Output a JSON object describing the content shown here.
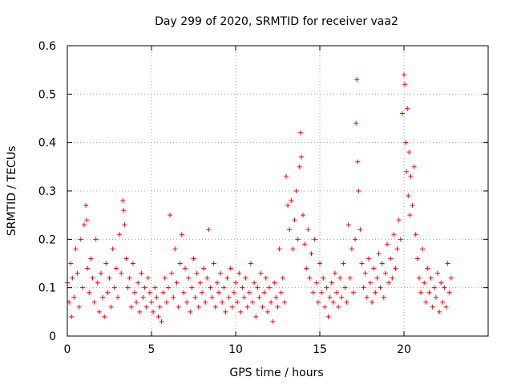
{
  "chart_data": {
    "type": "scatter",
    "title": "Day 299 of 2020, SRMTID for receiver vaa2",
    "xlabel": "GPS time / hours",
    "ylabel": "SRMTID / TECUs",
    "xlim": [
      0,
      25
    ],
    "ylim": [
      0,
      0.6
    ],
    "x_ticks": [
      0,
      5,
      10,
      15,
      20
    ],
    "y_ticks": [
      0,
      0.1,
      0.2,
      0.3,
      0.4,
      0.5,
      0.6
    ],
    "x_tick_labels": [
      "0",
      "5",
      "10",
      "15",
      "20"
    ],
    "y_tick_labels": [
      "0",
      "0.1",
      "0.2",
      "0.3",
      "0.4",
      "0.5",
      "0.6"
    ],
    "grid": true,
    "marker": "+",
    "color": "#ff0000",
    "series": [
      {
        "name": "SRMTID",
        "x": [
          0.0,
          0.1,
          0.2,
          0.25,
          0.3,
          0.4,
          0.5,
          0.6,
          0.7,
          0.8,
          0.9,
          1.0,
          1.1,
          1.15,
          1.2,
          1.3,
          1.4,
          1.5,
          1.6,
          1.7,
          1.8,
          1.9,
          2.0,
          2.1,
          2.2,
          2.3,
          2.4,
          2.5,
          2.6,
          2.7,
          2.8,
          2.9,
          3.0,
          3.1,
          3.2,
          3.3,
          3.35,
          3.4,
          3.5,
          3.6,
          3.7,
          3.8,
          3.9,
          4.0,
          4.1,
          4.2,
          4.3,
          4.4,
          4.5,
          4.6,
          4.7,
          4.8,
          4.9,
          5.0,
          5.1,
          5.2,
          5.3,
          5.4,
          5.5,
          5.6,
          5.7,
          5.8,
          5.9,
          6.0,
          6.1,
          6.2,
          6.3,
          6.4,
          6.5,
          6.6,
          6.7,
          6.8,
          6.9,
          7.0,
          7.1,
          7.2,
          7.3,
          7.4,
          7.5,
          7.6,
          7.7,
          7.8,
          7.9,
          8.0,
          8.1,
          8.2,
          8.3,
          8.4,
          8.5,
          8.6,
          8.7,
          8.8,
          8.9,
          9.0,
          9.1,
          9.2,
          9.3,
          9.4,
          9.5,
          9.6,
          9.7,
          9.8,
          9.9,
          10.0,
          10.1,
          10.2,
          10.3,
          10.4,
          10.5,
          10.6,
          10.7,
          10.8,
          10.9,
          11.0,
          11.1,
          11.2,
          11.3,
          11.4,
          11.5,
          11.6,
          11.7,
          11.8,
          11.9,
          12.0,
          12.1,
          12.2,
          12.3,
          12.4,
          12.5,
          12.6,
          12.7,
          12.8,
          12.9,
          13.0,
          13.1,
          13.2,
          13.3,
          13.4,
          13.5,
          13.6,
          13.7,
          13.8,
          13.85,
          13.9,
          14.0,
          14.1,
          14.2,
          14.3,
          14.4,
          14.5,
          14.6,
          14.7,
          14.8,
          14.9,
          15.0,
          15.1,
          15.2,
          15.3,
          15.4,
          15.5,
          15.6,
          15.7,
          15.8,
          15.9,
          16.0,
          16.1,
          16.2,
          16.3,
          16.4,
          16.5,
          16.6,
          16.7,
          16.8,
          16.9,
          17.0,
          17.1,
          17.15,
          17.2,
          17.25,
          17.3,
          17.4,
          17.5,
          17.6,
          17.7,
          17.8,
          17.9,
          18.0,
          18.1,
          18.2,
          18.3,
          18.4,
          18.5,
          18.6,
          18.7,
          18.8,
          18.9,
          19.0,
          19.1,
          19.2,
          19.3,
          19.4,
          19.5,
          19.6,
          19.7,
          19.8,
          19.9,
          20.0,
          20.05,
          20.1,
          20.15,
          20.2,
          20.25,
          20.3,
          20.35,
          20.4,
          20.5,
          20.6,
          20.7,
          20.8,
          20.9,
          21.0,
          21.1,
          21.2,
          21.3,
          21.4,
          21.5,
          21.6,
          21.7,
          21.8,
          21.9,
          22.0,
          22.1,
          22.2,
          22.3,
          22.4,
          22.5,
          22.6,
          22.7,
          22.8
        ],
        "y": [
          0.11,
          0.07,
          0.15,
          0.04,
          0.12,
          0.08,
          0.18,
          0.13,
          0.06,
          0.2,
          0.1,
          0.23,
          0.27,
          0.24,
          0.14,
          0.09,
          0.16,
          0.12,
          0.07,
          0.2,
          0.11,
          0.05,
          0.13,
          0.08,
          0.04,
          0.15,
          0.09,
          0.12,
          0.06,
          0.18,
          0.1,
          0.14,
          0.08,
          0.21,
          0.13,
          0.28,
          0.26,
          0.23,
          0.16,
          0.1,
          0.12,
          0.06,
          0.15,
          0.09,
          0.07,
          0.11,
          0.05,
          0.13,
          0.08,
          0.1,
          0.06,
          0.12,
          0.09,
          0.07,
          0.05,
          0.1,
          0.08,
          0.04,
          0.06,
          0.03,
          0.09,
          0.12,
          0.07,
          0.1,
          0.25,
          0.13,
          0.08,
          0.18,
          0.11,
          0.06,
          0.15,
          0.21,
          0.09,
          0.14,
          0.07,
          0.12,
          0.05,
          0.1,
          0.16,
          0.08,
          0.13,
          0.06,
          0.11,
          0.09,
          0.14,
          0.07,
          0.12,
          0.22,
          0.1,
          0.08,
          0.15,
          0.06,
          0.11,
          0.09,
          0.13,
          0.07,
          0.1,
          0.05,
          0.12,
          0.08,
          0.14,
          0.06,
          0.09,
          0.11,
          0.07,
          0.13,
          0.05,
          0.1,
          0.08,
          0.12,
          0.06,
          0.09,
          0.15,
          0.07,
          0.11,
          0.04,
          0.1,
          0.08,
          0.13,
          0.06,
          0.09,
          0.12,
          0.05,
          0.1,
          0.07,
          0.03,
          0.11,
          0.08,
          0.06,
          0.18,
          0.09,
          0.12,
          0.07,
          0.33,
          0.27,
          0.22,
          0.28,
          0.18,
          0.24,
          0.3,
          0.2,
          0.35,
          0.42,
          0.37,
          0.25,
          0.19,
          0.14,
          0.22,
          0.12,
          0.17,
          0.09,
          0.2,
          0.11,
          0.07,
          0.15,
          0.09,
          0.12,
          0.06,
          0.1,
          0.04,
          0.08,
          0.11,
          0.07,
          0.13,
          0.09,
          0.06,
          0.12,
          0.08,
          0.15,
          0.1,
          0.07,
          0.23,
          0.12,
          0.18,
          0.09,
          0.2,
          0.44,
          0.53,
          0.36,
          0.3,
          0.22,
          0.15,
          0.1,
          0.13,
          0.08,
          0.16,
          0.11,
          0.07,
          0.14,
          0.09,
          0.12,
          0.17,
          0.1,
          0.15,
          0.08,
          0.13,
          0.19,
          0.11,
          0.16,
          0.12,
          0.21,
          0.14,
          0.18,
          0.24,
          0.2,
          0.46,
          0.54,
          0.52,
          0.4,
          0.34,
          0.47,
          0.29,
          0.38,
          0.25,
          0.33,
          0.27,
          0.35,
          0.21,
          0.16,
          0.12,
          0.09,
          0.18,
          0.11,
          0.07,
          0.14,
          0.09,
          0.12,
          0.06,
          0.1,
          0.08,
          0.13,
          0.05,
          0.11,
          0.07,
          0.1,
          0.06,
          0.15,
          0.09,
          0.12
        ]
      }
    ]
  }
}
